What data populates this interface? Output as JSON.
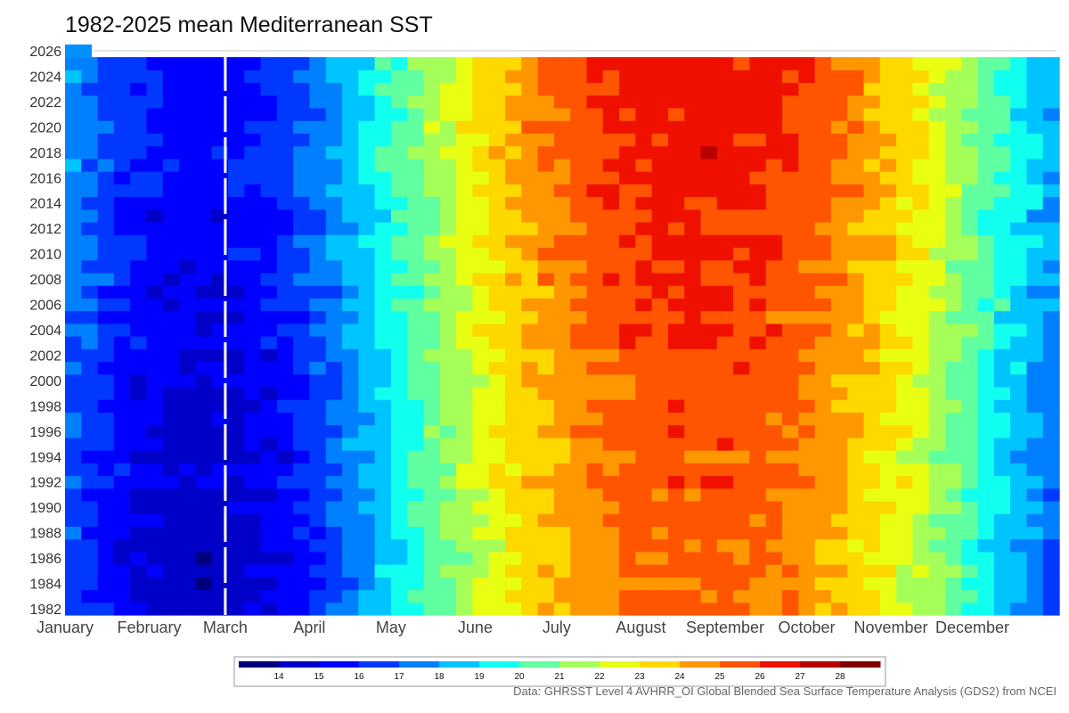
{
  "chart_data": {
    "type": "heatmap",
    "title": "1982-2025 mean Mediterranean SST",
    "x_ticks": [
      "January",
      "February",
      "March",
      "April",
      "May",
      "June",
      "July",
      "August",
      "September",
      "October",
      "November",
      "December"
    ],
    "y_ticks": [
      "1982",
      "1984",
      "1986",
      "1988",
      "1990",
      "1992",
      "1994",
      "1996",
      "1998",
      "2000",
      "2002",
      "2004",
      "2006",
      "2008",
      "2010",
      "2012",
      "2014",
      "2016",
      "2018",
      "2020",
      "2022",
      "2024",
      "2026"
    ],
    "colorbar": {
      "ticks": [
        "14",
        "15",
        "16",
        "17",
        "18",
        "19",
        "20",
        "21",
        "22",
        "23",
        "24",
        "25",
        "26",
        "27",
        "28"
      ],
      "colors": [
        "#00007f",
        "#0000c8",
        "#0000ff",
        "#0038ff",
        "#0080ff",
        "#00c4ff",
        "#10ffef",
        "#60ffa0",
        "#a6ff58",
        "#e8ff14",
        "#ffd800",
        "#ff9800",
        "#ff5400",
        "#f01000",
        "#b80000",
        "#800000"
      ]
    },
    "day_of_year_ticks": [
      1,
      32,
      60,
      91,
      121,
      152,
      182,
      213,
      244,
      274,
      305,
      335
    ],
    "year_range": [
      1982,
      2025
    ],
    "current_year": 2026,
    "values_by_month": {
      "months": [
        "Jan",
        "Feb",
        "Mar",
        "Apr",
        "May",
        "Jun",
        "Jul",
        "Aug",
        "Sep",
        "Oct",
        "Nov",
        "Dec"
      ],
      "approx_sst_early_years": [
        15.5,
        14.8,
        14.7,
        15.4,
        17.8,
        21.5,
        24.5,
        25.8,
        25.0,
        22.8,
        20.0,
        17.0
      ],
      "approx_sst_recent_years": [
        16.2,
        15.4,
        15.3,
        16.0,
        18.6,
        22.6,
        25.8,
        27.3,
        26.4,
        24.0,
        21.0,
        18.0
      ]
    },
    "marker_line": "March",
    "source": "Data: GHRSST Level 4 AVHRR_OI Global Blended Sea Surface Temperature Analysis (GDS2) from NCEI"
  }
}
